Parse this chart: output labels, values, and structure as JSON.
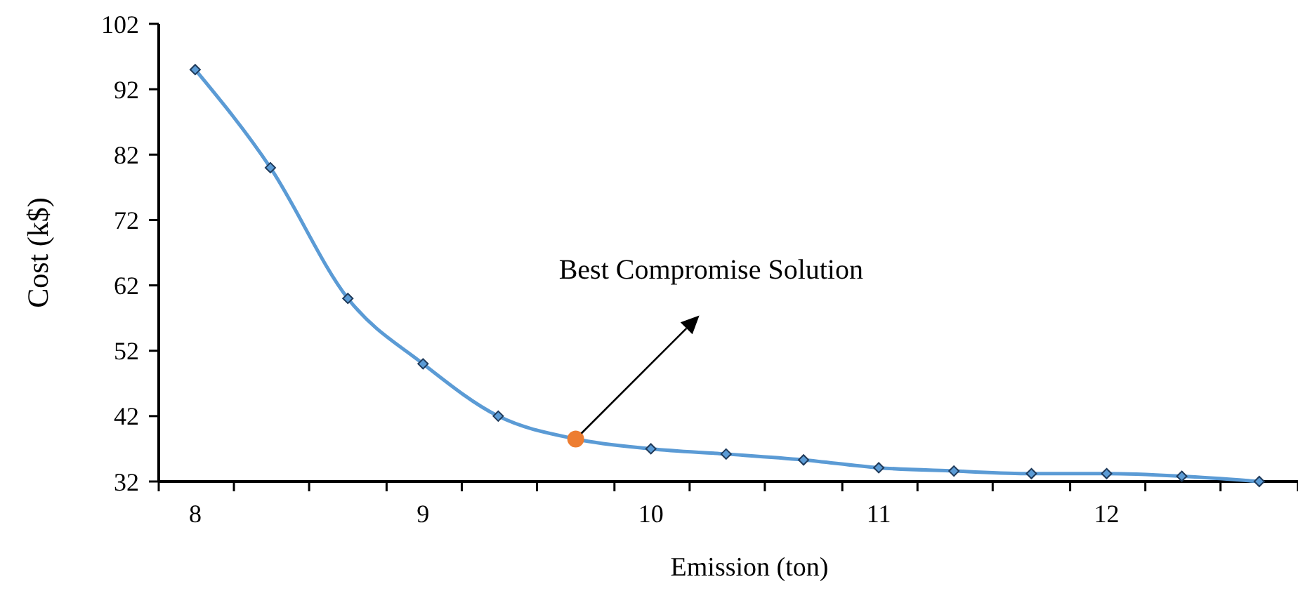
{
  "chart_data": {
    "type": "line",
    "xlabel": "Emission (ton)",
    "ylabel": "Cost (k$)",
    "xlim": [
      7.84,
      12.84
    ],
    "ylim": [
      32,
      102
    ],
    "xticks": [
      8,
      9,
      10,
      11,
      12,
      {
        "value": 7.84,
        "label": null
      },
      {
        "value": 8.17,
        "label": null
      },
      {
        "value": 8.5,
        "label": null
      },
      {
        "value": 8.84,
        "label": null
      },
      {
        "value": 9.17,
        "label": null
      },
      {
        "value": 9.5,
        "label": null
      },
      {
        "value": 9.84,
        "label": null
      },
      {
        "value": 10.17,
        "label": null
      },
      {
        "value": 10.5,
        "label": null
      },
      {
        "value": 10.84,
        "label": null
      },
      {
        "value": 11.17,
        "label": null
      },
      {
        "value": 11.5,
        "label": null
      },
      {
        "value": 11.84,
        "label": null
      },
      {
        "value": 12.17,
        "label": null
      },
      {
        "value": 12.5,
        "label": null
      },
      {
        "value": 12.84,
        "label": null
      }
    ],
    "yticks": [
      32,
      42,
      52,
      62,
      72,
      82,
      92,
      102
    ],
    "marker": "diamond",
    "grid": false,
    "series": [
      {
        "color": "#5b9bd5",
        "x": [
          8,
          8.33,
          8.67,
          9,
          9.33,
          9.67,
          10,
          10.33,
          10.67,
          11,
          11.33,
          11.67,
          12,
          12.33,
          12.67
        ],
        "values": [
          95,
          80,
          60,
          50,
          42,
          38.5,
          37,
          36.2,
          35.3,
          34.1,
          33.6,
          33.2,
          33.2,
          32.8,
          32
        ]
      },
      {
        "type": "scatter",
        "marker": "circle",
        "color": "#ed7d31",
        "x": [
          9.67
        ],
        "values": [
          38.5
        ]
      }
    ],
    "annotations": [
      "Best Compromise Solution"
    ]
  }
}
